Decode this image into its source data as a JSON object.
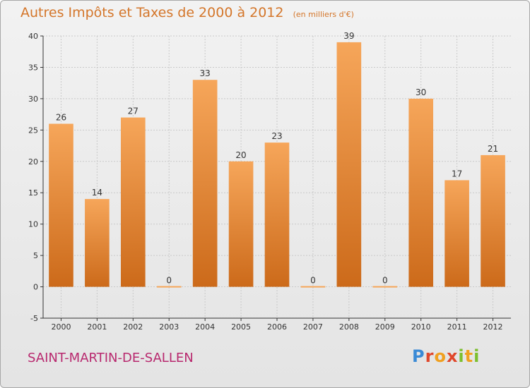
{
  "title": "Autres Impôts et Taxes de 2000 à 2012",
  "title_unit": "(en milliers d'€)",
  "city": "SAINT-MARTIN-DE-SALLEN",
  "brand": "Proxiti",
  "colors": {
    "bar_light": "#f6a65a",
    "bar_dark": "#cc6a1a",
    "title": "#d4762a",
    "city": "#b8286e",
    "grid": "#c9c9c9",
    "axis": "#333333"
  },
  "chart_data": {
    "type": "bar",
    "title": "Autres Impôts et Taxes de 2000 à 2012",
    "xlabel": "",
    "ylabel": "",
    "categories": [
      "2000",
      "2001",
      "2002",
      "2003",
      "2004",
      "2005",
      "2006",
      "2007",
      "2008",
      "2009",
      "2010",
      "2011",
      "2012"
    ],
    "values": [
      26,
      14,
      27,
      0,
      33,
      20,
      23,
      0,
      39,
      0,
      30,
      17,
      21
    ],
    "ylim": [
      -5,
      40
    ],
    "yticks": [
      -5,
      0,
      5,
      10,
      15,
      20,
      25,
      30,
      35,
      40
    ],
    "grid": true,
    "legend": "none",
    "data_labels": true
  }
}
